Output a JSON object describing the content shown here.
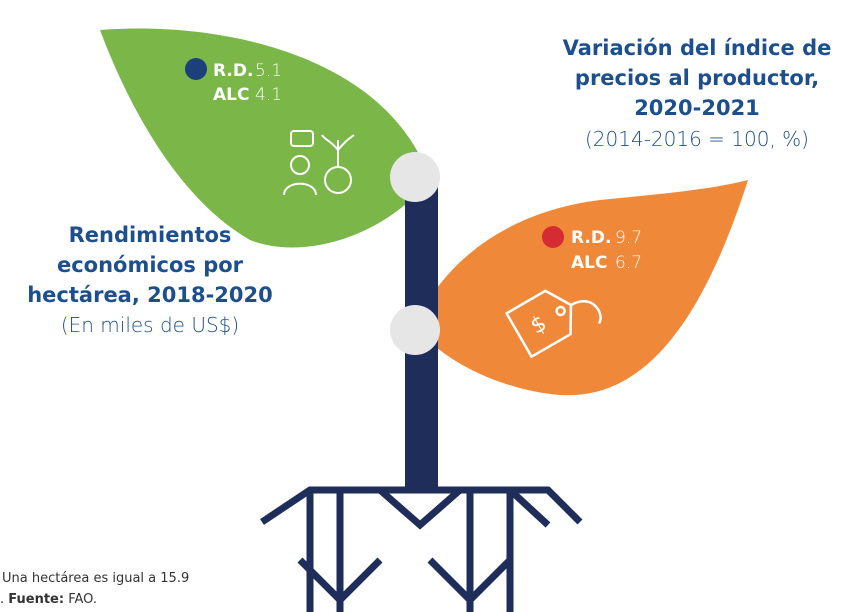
{
  "left_panel": {
    "title_lines": [
      "Rendimientos",
      "económicos por",
      "hectárea, 2018-2020"
    ],
    "subtitle": "(En miles de US$)",
    "rows": [
      {
        "label": "R.D.",
        "value": 5.1
      },
      {
        "label": "ALC",
        "value": 4.1
      }
    ]
  },
  "right_panel": {
    "title_lines": [
      "Variación del índice de",
      "precios al productor,",
      "2020-2021"
    ],
    "subtitle": "(2014-2016 = 100, %)",
    "rows": [
      {
        "label": "R.D.",
        "value": 9.7
      },
      {
        "label": "ALC",
        "value": 6.7
      }
    ]
  },
  "footnote": {
    "line1": "Una hectárea es igual a 15.9",
    "line2_start": ".",
    "source_label": "Fuente:",
    "source": "FAO."
  }
}
